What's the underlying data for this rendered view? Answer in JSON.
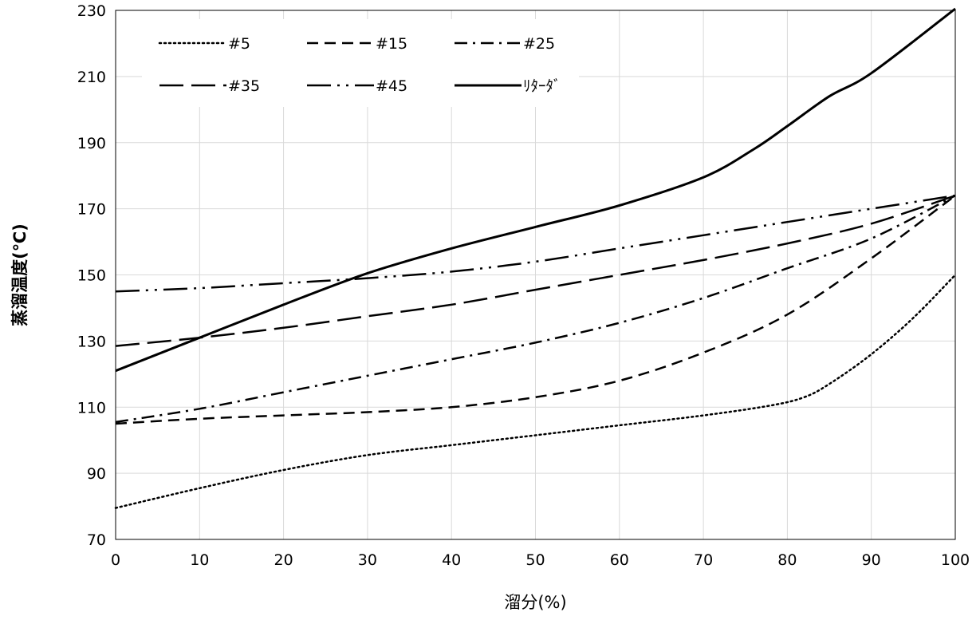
{
  "chart_data": {
    "type": "line",
    "title": "",
    "xlabel": "溜分(%)",
    "ylabel": "蒸溜温度(℃)",
    "xlim": [
      0,
      100
    ],
    "ylim": [
      70,
      230
    ],
    "x_ticks": [
      0,
      10,
      20,
      30,
      40,
      50,
      60,
      70,
      80,
      90,
      100
    ],
    "y_ticks": [
      70,
      90,
      110,
      130,
      150,
      170,
      190,
      210,
      230
    ],
    "grid": true,
    "legend_position": "top-left",
    "series": [
      {
        "name": "#5",
        "line_style": "dotted",
        "x": [
          0,
          10,
          20,
          30,
          40,
          50,
          60,
          70,
          78,
          82,
          85,
          90,
          95,
          100
        ],
        "y": [
          79.5,
          85.5,
          91,
          95.5,
          98.5,
          101.5,
          104.5,
          107.5,
          110.5,
          113,
          117,
          126,
          137,
          150
        ]
      },
      {
        "name": "#15",
        "line_style": "short-dash",
        "x": [
          0,
          10,
          20,
          30,
          40,
          50,
          60,
          70,
          80,
          90,
          100
        ],
        "y": [
          105,
          106.5,
          107.5,
          108.5,
          110,
          113,
          118,
          126.5,
          138,
          155,
          174
        ]
      },
      {
        "name": "#25",
        "line_style": "dash-dot",
        "x": [
          0,
          10,
          20,
          30,
          40,
          50,
          60,
          70,
          80,
          90,
          100
        ],
        "y": [
          105.5,
          109.5,
          114.5,
          119.5,
          124.5,
          129.5,
          135.5,
          143,
          152,
          161,
          174
        ]
      },
      {
        "name": "#35",
        "line_style": "long-dash",
        "x": [
          0,
          10,
          20,
          30,
          40,
          50,
          60,
          70,
          80,
          90,
          100
        ],
        "y": [
          128.5,
          131,
          134,
          137.5,
          141,
          145.5,
          150,
          154.5,
          159.5,
          165.5,
          174
        ]
      },
      {
        "name": "#45",
        "line_style": "long-dash-dot-dot",
        "x": [
          0,
          10,
          20,
          30,
          40,
          50,
          60,
          70,
          80,
          90,
          100
        ],
        "y": [
          145,
          146,
          147.5,
          149,
          151,
          154,
          158,
          162,
          166,
          170,
          174
        ]
      },
      {
        "name": "ﾘﾀｰﾀﾞ",
        "line_style": "solid",
        "x": [
          0,
          10,
          20,
          30,
          40,
          50,
          60,
          70,
          76,
          80,
          85,
          90,
          100
        ],
        "y": [
          121,
          131,
          141,
          150.5,
          158,
          164.5,
          171,
          179.5,
          188,
          195,
          204,
          211,
          230.5
        ]
      }
    ]
  }
}
